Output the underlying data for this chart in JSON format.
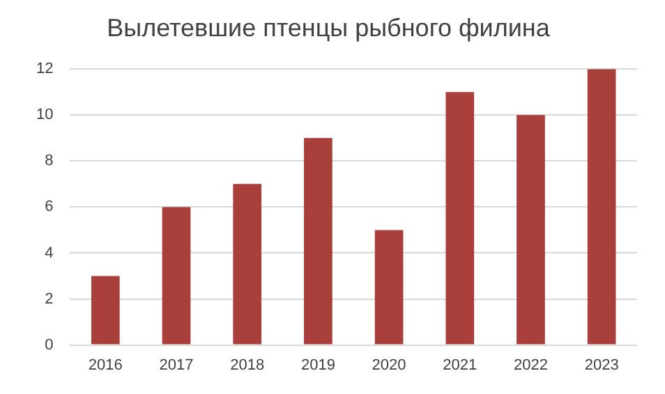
{
  "chart_data": {
    "type": "bar",
    "title": "Вылетевшие птенцы рыбного филина",
    "categories": [
      "2016",
      "2017",
      "2018",
      "2019",
      "2020",
      "2021",
      "2022",
      "2023"
    ],
    "values": [
      3,
      6,
      7,
      9,
      5,
      11,
      10,
      12
    ],
    "color": "#a83f3b",
    "ylim": [
      0,
      12
    ],
    "yticks": [
      0,
      2,
      4,
      6,
      8,
      10,
      12
    ],
    "grid": "y"
  }
}
